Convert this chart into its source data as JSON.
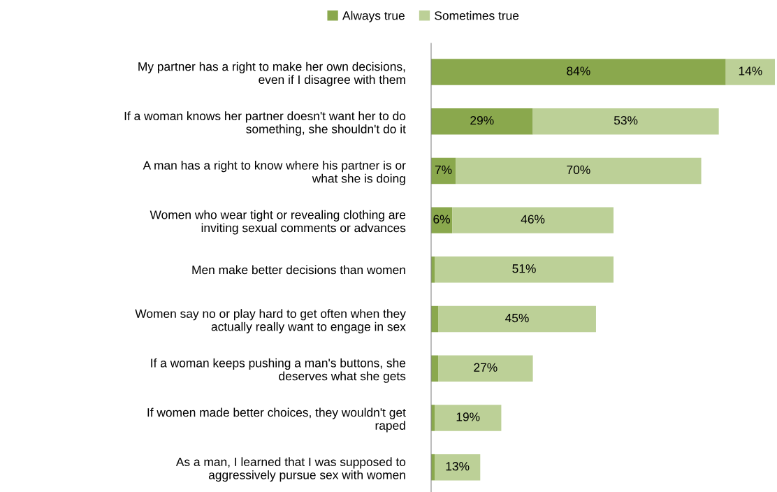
{
  "chart_data": {
    "type": "bar",
    "orientation": "horizontal",
    "stacked": true,
    "legend": "top",
    "categories": [
      "My partner has a right to make her own decisions, even if I disagree with them",
      "If a woman knows her partner doesn't want her to do something, she shouldn't do it",
      "A man has a right to know where his partner is or what she is doing",
      "Women who wear tight or revealing clothing are inviting sexual comments or advances",
      "Men make better decisions than women",
      "Women say no or play hard to get often when they actually really want to engage in sex",
      "If a woman keeps pushing a man's buttons, she deserves what she gets",
      "If women made better choices, they wouldn't get raped",
      "As a man, I learned that I was supposed to aggressively pursue sex with women"
    ],
    "series": [
      {
        "name": "Always true",
        "color": "#8aa84d",
        "values": [
          84,
          29,
          7,
          6,
          1,
          2,
          2,
          1,
          1
        ],
        "value_labels": [
          "84%",
          "29%",
          "7%",
          "6%",
          null,
          null,
          null,
          null,
          null
        ]
      },
      {
        "name": "Sometimes true",
        "color": "#bcd097",
        "values": [
          14,
          53,
          70,
          46,
          51,
          45,
          27,
          19,
          13
        ],
        "value_labels": [
          "14%",
          "53%",
          "70%",
          "46%",
          "51%",
          "45%",
          "27%",
          "19%",
          "13%"
        ]
      }
    ]
  }
}
